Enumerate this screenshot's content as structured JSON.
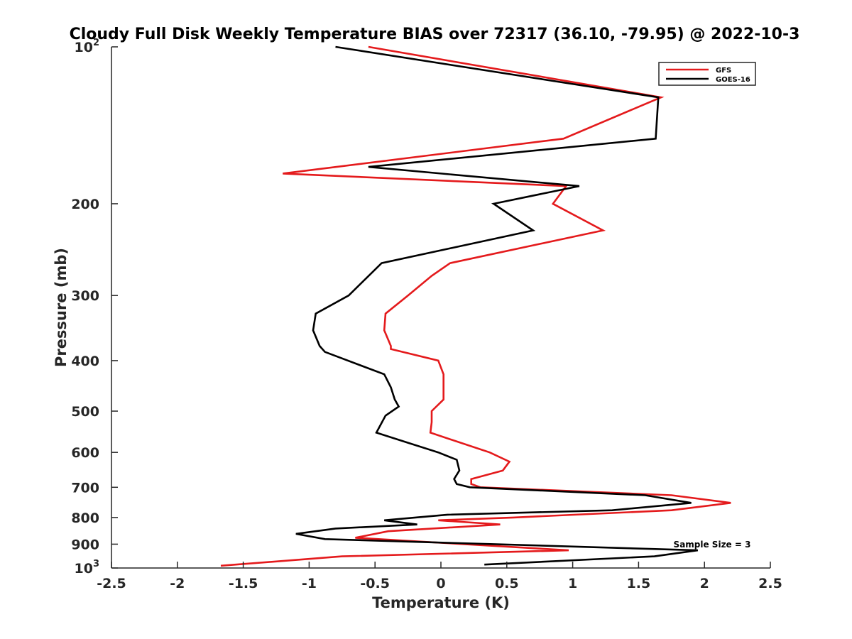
{
  "chart_data": {
    "type": "line",
    "title": "Cloudy Full Disk Weekly Temperature BIAS over 72317 (36.10, -79.95) @ 2022-10-3",
    "xlabel": "Temperature (K)",
    "ylabel": "Pressure (mb)",
    "xlim": [
      -2.5,
      2.5
    ],
    "ylim": [
      100,
      1000
    ],
    "y_scale": "log",
    "y_reversed": true,
    "grid": false,
    "legend_position": "top-right",
    "annotation": "Sample Size = 3",
    "x_ticks": [
      {
        "value": -2.5,
        "label": "-2.5"
      },
      {
        "value": -2,
        "label": "-2"
      },
      {
        "value": -1.5,
        "label": "-1.5"
      },
      {
        "value": -1,
        "label": "-1"
      },
      {
        "value": -0.5,
        "label": "-0.5"
      },
      {
        "value": 0,
        "label": "0"
      },
      {
        "value": 0.5,
        "label": "0.5"
      },
      {
        "value": 1,
        "label": "1"
      },
      {
        "value": 1.5,
        "label": "1.5"
      },
      {
        "value": 2,
        "label": "2"
      },
      {
        "value": 2.5,
        "label": "2.5"
      }
    ],
    "y_ticks": [
      {
        "value": 100,
        "label": "10",
        "sup": "2"
      },
      {
        "value": 200,
        "label": "200"
      },
      {
        "value": 300,
        "label": "300"
      },
      {
        "value": 400,
        "label": "400"
      },
      {
        "value": 500,
        "label": "500"
      },
      {
        "value": 600,
        "label": "600"
      },
      {
        "value": 700,
        "label": "700"
      },
      {
        "value": 800,
        "label": "800"
      },
      {
        "value": 900,
        "label": "900"
      },
      {
        "value": 1000,
        "label": "10",
        "sup": "3"
      }
    ],
    "series": [
      {
        "name": "GFS",
        "color": "#e41a1c",
        "points": [
          [
            -0.55,
            100
          ],
          [
            1.67,
            125
          ],
          [
            0.93,
            150
          ],
          [
            -1.2,
            175
          ],
          [
            0.95,
            185
          ],
          [
            0.85,
            200
          ],
          [
            1.23,
            225
          ],
          [
            0.07,
            260
          ],
          [
            -0.07,
            275
          ],
          [
            -0.25,
            300
          ],
          [
            -0.42,
            325
          ],
          [
            -0.43,
            350
          ],
          [
            -0.38,
            375
          ],
          [
            -0.38,
            380
          ],
          [
            -0.02,
            400
          ],
          [
            0.02,
            425
          ],
          [
            0.02,
            450
          ],
          [
            0.02,
            475
          ],
          [
            -0.07,
            500
          ],
          [
            -0.07,
            525
          ],
          [
            -0.08,
            550
          ],
          [
            0.37,
            600
          ],
          [
            0.52,
            625
          ],
          [
            0.47,
            650
          ],
          [
            0.23,
            675
          ],
          [
            0.23,
            690
          ],
          [
            0.3,
            700
          ],
          [
            1.75,
            725
          ],
          [
            2.2,
            750
          ],
          [
            1.75,
            775
          ],
          [
            0.55,
            800
          ],
          [
            -0.02,
            810
          ],
          [
            0.45,
            825
          ],
          [
            -0.4,
            850
          ],
          [
            -0.65,
            875
          ],
          [
            0.97,
            925
          ],
          [
            -0.75,
            950
          ],
          [
            -1.67,
            990
          ]
        ]
      },
      {
        "name": "GOES-16",
        "color": "#000000",
        "points": [
          [
            -0.8,
            100
          ],
          [
            1.65,
            125
          ],
          [
            1.63,
            150
          ],
          [
            -0.55,
            170
          ],
          [
            1.05,
            185
          ],
          [
            0.4,
            200
          ],
          [
            0.7,
            225
          ],
          [
            -0.45,
            260
          ],
          [
            -0.7,
            300
          ],
          [
            -0.95,
            325
          ],
          [
            -0.97,
            350
          ],
          [
            -0.92,
            375
          ],
          [
            -0.88,
            385
          ],
          [
            -0.43,
            425
          ],
          [
            -0.38,
            450
          ],
          [
            -0.35,
            475
          ],
          [
            -0.32,
            490
          ],
          [
            -0.42,
            510
          ],
          [
            -0.49,
            550
          ],
          [
            -0.25,
            575
          ],
          [
            -0.02,
            600
          ],
          [
            0.12,
            620
          ],
          [
            0.14,
            650
          ],
          [
            0.1,
            675
          ],
          [
            0.12,
            690
          ],
          [
            0.22,
            700
          ],
          [
            1.55,
            725
          ],
          [
            1.9,
            750
          ],
          [
            1.3,
            775
          ],
          [
            0.05,
            790
          ],
          [
            -0.43,
            810
          ],
          [
            -0.18,
            825
          ],
          [
            -0.8,
            840
          ],
          [
            -1.1,
            860
          ],
          [
            -0.88,
            880
          ],
          [
            1.95,
            925
          ],
          [
            1.62,
            950
          ],
          [
            0.33,
            985
          ]
        ]
      }
    ]
  }
}
